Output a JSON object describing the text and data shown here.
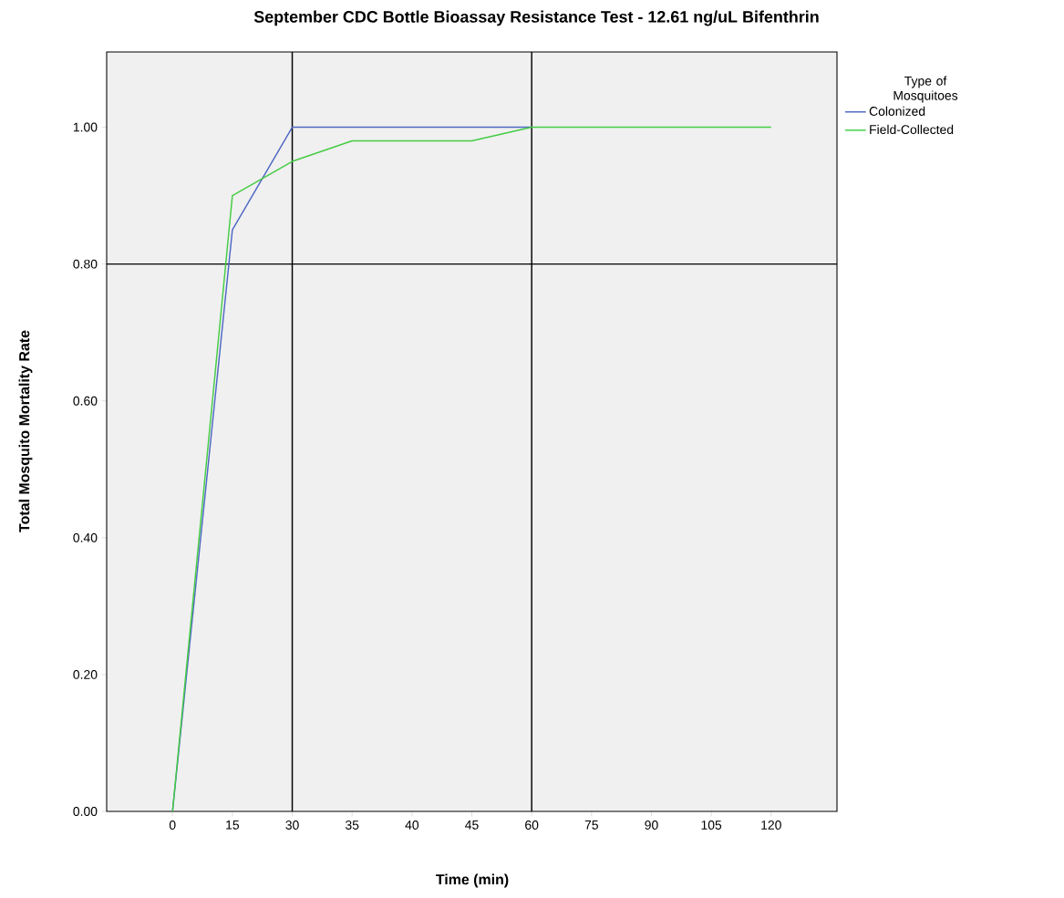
{
  "chart_data": {
    "type": "line",
    "title": "September CDC Bottle Bioassay Resistance Test - 12.61 ng/uL Bifenthrin",
    "xlabel": "Time (min)",
    "ylabel": "Total Mosquito Mortality Rate",
    "legend_title": "Type of Mosquitoes",
    "categories": [
      "0",
      "15",
      "30",
      "35",
      "40",
      "45",
      "60",
      "75",
      "90",
      "105",
      "120"
    ],
    "series": [
      {
        "name": "Colonized",
        "color": "#5068c4",
        "values": [
          0.0,
          0.85,
          1.0,
          1.0,
          1.0,
          1.0,
          1.0,
          null,
          null,
          null,
          null
        ]
      },
      {
        "name": "Field-Collected",
        "color": "#44cc44",
        "values": [
          0.0,
          0.9,
          0.95,
          0.98,
          0.98,
          0.98,
          1.0,
          1.0,
          1.0,
          1.0,
          1.0
        ]
      }
    ],
    "ylim": [
      0,
      1.11
    ],
    "yticks": [
      {
        "value": 0,
        "label": "0.00"
      },
      {
        "value": 0.2,
        "label": "0.20"
      },
      {
        "value": 0.4,
        "label": "0.40"
      },
      {
        "value": 0.6,
        "label": "0.60"
      },
      {
        "value": 0.8,
        "label": "0.80"
      },
      {
        "value": 1.0,
        "label": "1.00"
      }
    ],
    "ref_lines": [
      {
        "axis": "x",
        "value": "30",
        "color": "#000000"
      },
      {
        "axis": "x",
        "value": "60",
        "color": "#000000"
      },
      {
        "axis": "y",
        "value": 0.8,
        "color": "#000000"
      }
    ],
    "legend": "right",
    "marker": "none",
    "line_style": "solid"
  }
}
